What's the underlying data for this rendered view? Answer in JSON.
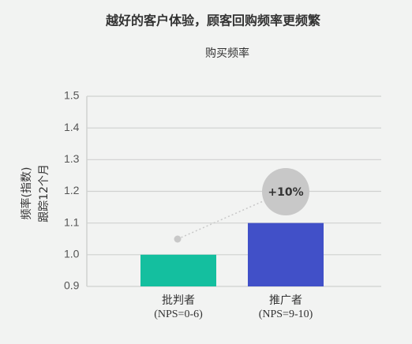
{
  "chart_data": {
    "type": "bar",
    "title": "越好的客户体验，顾客回购频率更频繁",
    "subtitle": "购买频率",
    "y_label": [
      "频率(指数)",
      "跟踪12个月"
    ],
    "categories": [
      "批判者",
      "推广者"
    ],
    "category_notes": [
      "(NPS=0-6)",
      "(NPS=9-10)"
    ],
    "values": [
      1.0,
      1.1
    ],
    "colors": [
      "#14bf9f",
      "#4150c8"
    ],
    "annotation": "+10%",
    "ylim": [
      0.9,
      1.5
    ],
    "yticks": [
      0.9,
      {
        "value": 1,
        "label": "1.0"
      },
      1.1,
      1.2,
      1.3,
      1.4,
      1.5
    ],
    "grid": true
  }
}
